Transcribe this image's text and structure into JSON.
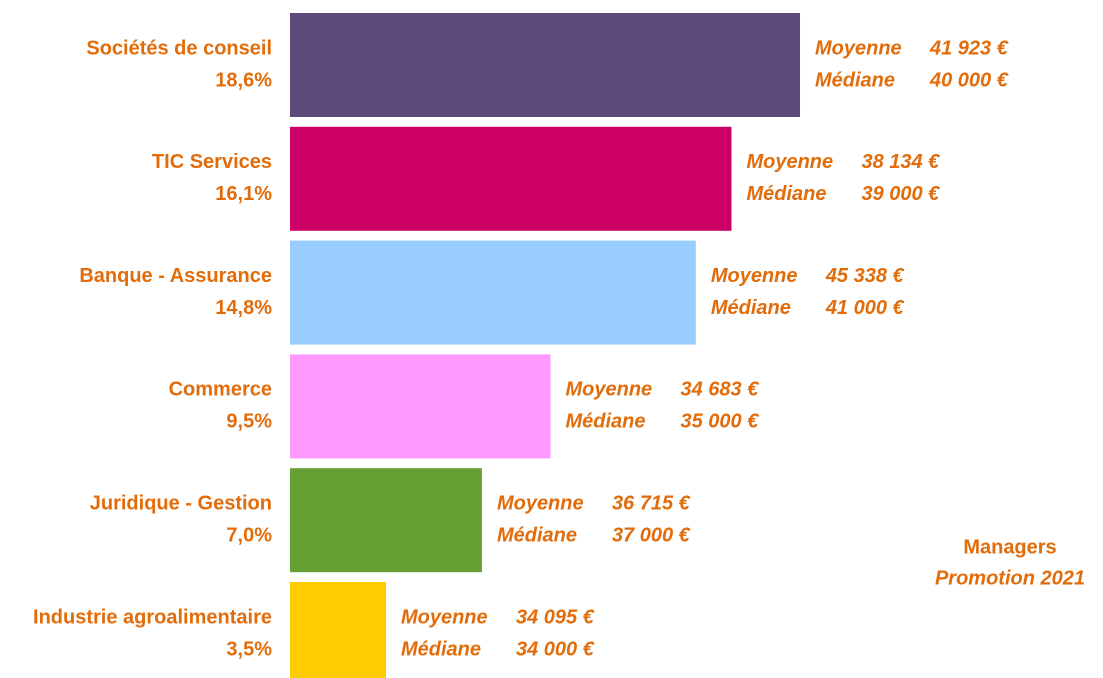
{
  "chart_data": {
    "type": "bar",
    "orientation": "horizontal",
    "title": "Managers",
    "subtitle": "Promotion 2021",
    "categories": [
      "Sociétés de conseil",
      "TIC Services",
      "Banque - Assurance",
      "Commerce",
      "Juridique - Gestion",
      "Industrie agroalimentaire"
    ],
    "values": [
      18.6,
      16.1,
      14.8,
      9.5,
      7.0,
      3.5
    ],
    "value_labels": [
      "18,6%",
      "16,1%",
      "14,8%",
      "9,5%",
      "7,0%",
      "3,5%"
    ],
    "colors": [
      "#5e4a7a",
      "#cc0066",
      "#99ccff",
      "#ff99ff",
      "#66a033",
      "#ffcc00"
    ],
    "mean_label": "Moyenne",
    "median_label": "Médiane",
    "means": [
      "41 923 €",
      "38 134 €",
      "45 338 €",
      "34 683 €",
      "36 715 €",
      "34 095 €"
    ],
    "medians": [
      "40 000 €",
      "39 000 €",
      "41 000 €",
      "35 000 €",
      "37 000 €",
      "34 000 €"
    ]
  }
}
